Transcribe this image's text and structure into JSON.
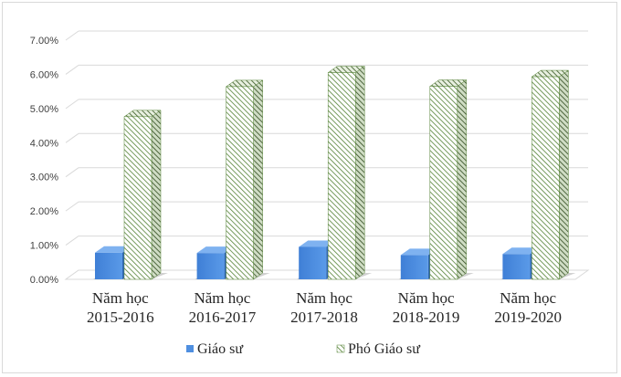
{
  "chart_data": {
    "type": "bar",
    "style": "3d-clustered-column",
    "categories": [
      [
        "Năm học",
        "2015-2016"
      ],
      [
        "Năm học",
        "2016-2017"
      ],
      [
        "Năm học",
        "2017-2018"
      ],
      [
        "Năm học",
        "2018-2019"
      ],
      [
        "Năm học",
        "2019-2020"
      ]
    ],
    "series": [
      {
        "name": "Giáo sư",
        "values": [
          0.78,
          0.77,
          0.95,
          0.71,
          0.74
        ],
        "color": "#4f8fe0",
        "pattern": "solid"
      },
      {
        "name": "Phó Giáo sư",
        "values": [
          4.76,
          5.64,
          6.05,
          5.65,
          5.93
        ],
        "color": "#548235",
        "pattern": "diagonal-hatch"
      }
    ],
    "y_ticks": [
      "0.00%",
      "1.00%",
      "2.00%",
      "3.00%",
      "4.00%",
      "5.00%",
      "6.00%",
      "7.00%"
    ],
    "ylim": [
      0,
      7
    ],
    "unit": "%",
    "grid": true,
    "legend": "bottom"
  }
}
